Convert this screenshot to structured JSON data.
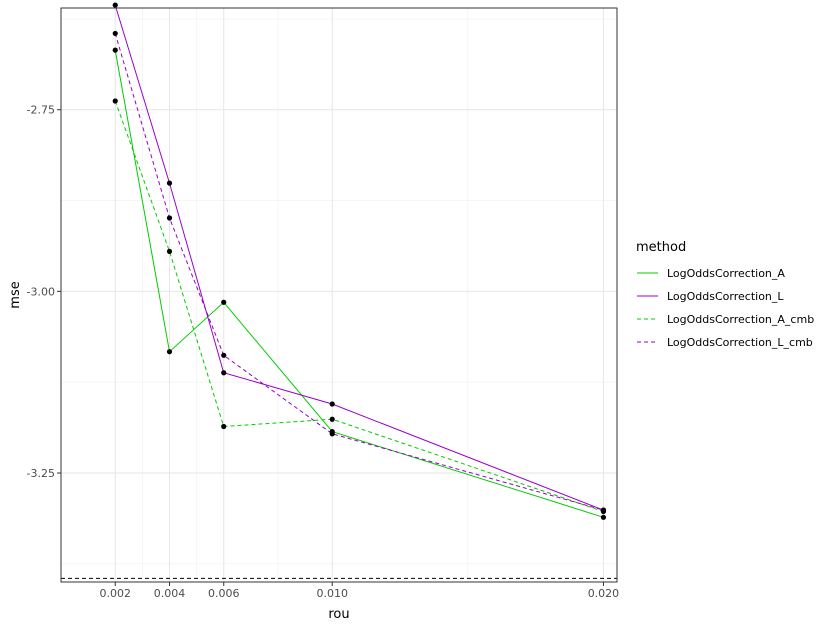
{
  "chart_data": {
    "type": "line",
    "xlabel": "rou",
    "ylabel": "mse",
    "xlim": [
      0.0,
      0.0205
    ],
    "ylim": [
      -3.4,
      -2.61
    ],
    "x_ticks": [
      0.002,
      0.004,
      0.006,
      0.01,
      0.02
    ],
    "x_tick_labels": [
      "0.002",
      "0.004",
      "0.006",
      "0.010",
      "0.020"
    ],
    "x_minor_ticks": [
      0.003,
      0.005,
      0.008,
      0.015
    ],
    "y_ticks": [
      -2.75,
      -3.0,
      -3.25
    ],
    "y_tick_labels": [
      "-2.75",
      "-3.00",
      "-3.25"
    ],
    "y_minor_ticks": [
      -2.625,
      -2.875,
      -3.125,
      -3.375
    ],
    "grid": true,
    "legend_title": "method",
    "legend_position": "right",
    "reference_line": {
      "y": -3.395,
      "style": "dashed",
      "color": "#000000"
    },
    "series": [
      {
        "name": "LogOddsCorrection_A",
        "color": "#00cc00",
        "dash": "solid",
        "x": [
          0.002,
          0.004,
          0.006,
          0.01,
          0.02
        ],
        "y": [
          -2.668,
          -3.083,
          -3.015,
          -3.193,
          -3.311
        ]
      },
      {
        "name": "LogOddsCorrection_L",
        "color": "#9900cc",
        "dash": "solid",
        "x": [
          0.002,
          0.004,
          0.006,
          0.01,
          0.02
        ],
        "y": [
          -2.606,
          -2.851,
          -3.112,
          -3.155,
          -3.301
        ]
      },
      {
        "name": "LogOddsCorrection_A_cmb",
        "color": "#00cc00",
        "dash": "dashed",
        "x": [
          0.002,
          0.004,
          0.006,
          0.01,
          0.02
        ],
        "y": [
          -2.738,
          -2.945,
          -3.186,
          -3.176,
          -3.303
        ]
      },
      {
        "name": "LogOddsCorrection_L_cmb",
        "color": "#9900cc",
        "dash": "dashed",
        "x": [
          0.002,
          0.004,
          0.006,
          0.01,
          0.02
        ],
        "y": [
          -2.645,
          -2.899,
          -3.088,
          -3.196,
          -3.301
        ]
      }
    ]
  }
}
